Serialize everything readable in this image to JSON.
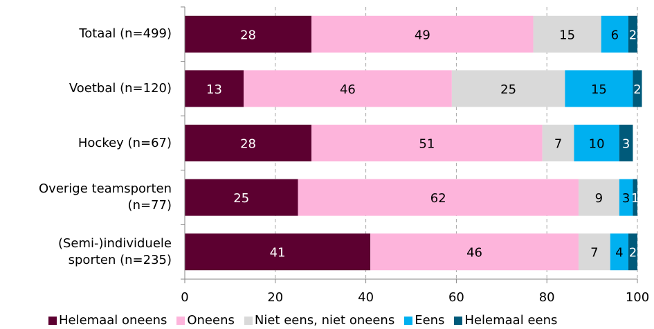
{
  "chart_data": {
    "type": "bar",
    "orientation": "horizontal",
    "stacked": true,
    "categories": [
      "Totaal (n=499)",
      "Voetbal (n=120)",
      "Hockey (n=67)",
      "Overige teamsporten\n(n=77)",
      "(Semi-)individuele\nsporten (n=235)"
    ],
    "series": [
      {
        "name": "Helemaal oneens",
        "color": "#5c0030",
        "label_color": "#ffffff",
        "values": [
          28,
          13,
          28,
          25,
          41
        ]
      },
      {
        "name": "Oneens",
        "color": "#fdb4db",
        "label_color": "#000000",
        "values": [
          49,
          46,
          51,
          62,
          46
        ]
      },
      {
        "name": "Niet eens, niet oneens",
        "color": "#d9d9d9",
        "label_color": "#000000",
        "values": [
          15,
          25,
          7,
          9,
          7
        ]
      },
      {
        "name": "Eens",
        "color": "#00b0f0",
        "label_color": "#000000",
        "values": [
          6,
          15,
          10,
          3,
          4
        ]
      },
      {
        "name": "Helemaal eens",
        "color": "#005a7a",
        "label_color": "#ffffff",
        "values": [
          2,
          2,
          3,
          1,
          2
        ]
      }
    ],
    "xlim": [
      0,
      100
    ],
    "xticks": [
      "0",
      "20",
      "40",
      "60",
      "80",
      "100"
    ],
    "grid": true,
    "legend_position": "bottom"
  }
}
